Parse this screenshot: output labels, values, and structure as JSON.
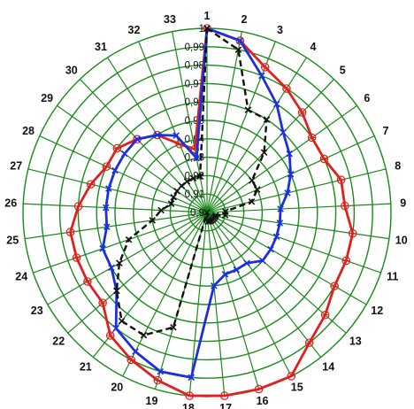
{
  "chart_data": {
    "type": "radar",
    "spoke_labels": [
      "1",
      "2",
      "3",
      "4",
      "5",
      "6",
      "7",
      "8",
      "9",
      "10",
      "11",
      "12",
      "13",
      "14",
      "15",
      "16",
      "17",
      "18",
      "19",
      "20",
      "21",
      "22",
      "23",
      "24",
      "25",
      "26",
      "27",
      "28",
      "29",
      "30",
      "31",
      "32",
      "33"
    ],
    "radial_range": [
      0.9,
      1.0
    ],
    "ring_ticks": [
      "0,9",
      "0,91",
      "0,92",
      "0,93",
      "0,94",
      "0,95",
      "0,96",
      "0,97",
      "0,98",
      "0,99",
      "1"
    ],
    "grid": true,
    "grid_color": "#1a8a1a",
    "series": [
      {
        "color": "#e0201e",
        "line_style": "solid",
        "marker": "circle",
        "values": [
          1.0,
          0.995,
          0.985,
          0.98,
          0.975,
          0.97,
          0.97,
          0.975,
          0.975,
          0.98,
          0.98,
          0.98,
          0.985,
          0.99,
          1.0,
          1.0,
          1.0,
          1.0,
          0.995,
          0.99,
          0.985,
          0.975,
          0.975,
          0.975,
          0.975,
          0.97,
          0.965,
          0.96,
          0.96,
          0.955,
          0.95,
          0.94,
          0.935
        ]
      },
      {
        "color": "#1c2fe0",
        "line_style": "solid",
        "marker": "x",
        "values": [
          1.0,
          0.995,
          0.98,
          0.97,
          0.96,
          0.955,
          0.95,
          0.945,
          0.94,
          0.94,
          0.94,
          0.94,
          0.94,
          0.935,
          0.935,
          0.935,
          0.94,
          0.99,
          0.99,
          0.985,
          0.98,
          0.965,
          0.96,
          0.96,
          0.955,
          0.955,
          0.955,
          0.955,
          0.955,
          0.955,
          0.95,
          0.945,
          0.93
        ]
      },
      {
        "color": "#111111",
        "line_style": "dashed",
        "marker": "x",
        "values": [
          1.0,
          0.99,
          0.96,
          0.96,
          0.945,
          0.93,
          0.93,
          0.925,
          0.91,
          0.91,
          0.905,
          0.905,
          0.905,
          0.905,
          0.905,
          0.905,
          0.905,
          0.9,
          0.965,
          0.975,
          0.975,
          0.965,
          0.955,
          0.945,
          0.93,
          0.925,
          0.92,
          0.92,
          0.92,
          0.92,
          0.92,
          0.92,
          0.92
        ]
      }
    ]
  }
}
